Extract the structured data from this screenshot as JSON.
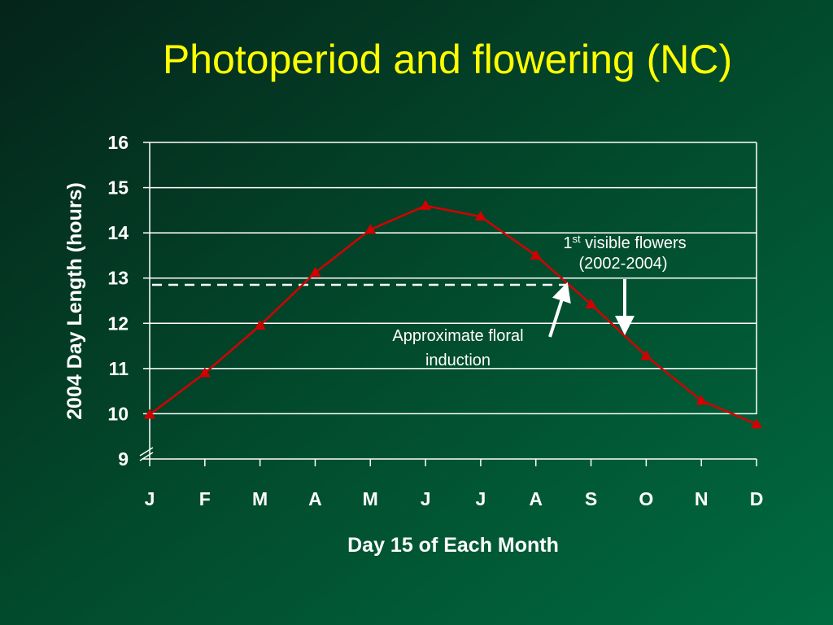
{
  "chart_data": {
    "type": "line",
    "title": "Photoperiod and flowering (NC)",
    "x_label": "Day 15 of Each Month",
    "y_label": "2004 Day Length (hours)",
    "categories": [
      "J",
      "F",
      "M",
      "A",
      "M",
      "J",
      "J",
      "A",
      "S",
      "O",
      "N",
      "D"
    ],
    "series": [
      {
        "color": "#d40000",
        "values": [
          9.98,
          10.9,
          11.95,
          13.12,
          14.07,
          14.6,
          14.36,
          13.5,
          12.42,
          11.28,
          10.29,
          9.77
        ]
      }
    ],
    "ylim": [
      9,
      16
    ],
    "yticks": [
      9,
      10,
      11,
      12,
      13,
      14,
      15,
      16
    ],
    "grid": true,
    "reference_line": 12.85,
    "annotations": [
      {
        "lines": [
          "Approximate floral",
          "induction"
        ]
      },
      {
        "first": "1",
        "sup": "st",
        "rest": " visible flowers",
        "second": "(2002-2004)"
      }
    ]
  }
}
